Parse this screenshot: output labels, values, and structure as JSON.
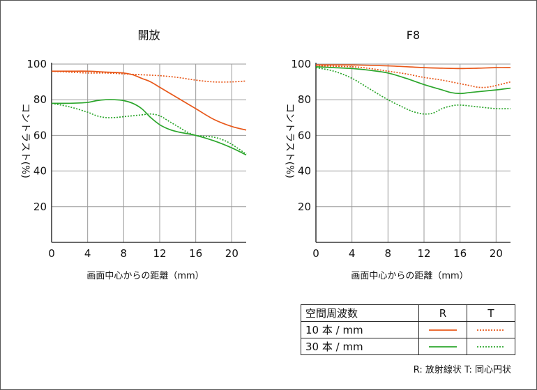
{
  "colors": {
    "r10": "#e8581a",
    "t10": "#e8581a",
    "r30": "#2ca62c",
    "t30": "#2ca62c",
    "grid": "#9a9a9a",
    "axis": "#111111"
  },
  "chart_data": [
    {
      "type": "line",
      "title": "開放",
      "xlabel": "画面中心からの距離（mm）",
      "ylabel": "コントラスト(%)",
      "xlim": [
        0,
        21.6
      ],
      "ylim": [
        0,
        100
      ],
      "xticks": [
        0,
        4,
        8,
        12,
        16,
        20
      ],
      "yticks": [
        20,
        40,
        60,
        80,
        100
      ],
      "grid": true,
      "series": [
        {
          "key": "r10",
          "style": "solid",
          "x": [
            0,
            2,
            4,
            6,
            8,
            9,
            10,
            11,
            12,
            13,
            14,
            16,
            18,
            20,
            21.6
          ],
          "y": [
            96,
            96,
            96,
            95.5,
            95,
            94,
            92,
            90,
            87,
            84,
            81,
            75,
            69,
            65,
            63
          ]
        },
        {
          "key": "t10",
          "style": "dotted",
          "x": [
            0,
            2,
            4,
            6,
            8,
            10,
            12,
            14,
            16,
            18,
            20,
            21.6
          ],
          "y": [
            96,
            95.5,
            95,
            95,
            94.5,
            94,
            93.5,
            92.5,
            91,
            90,
            90,
            90.5
          ]
        },
        {
          "key": "r30",
          "style": "solid",
          "x": [
            0,
            2,
            4,
            5,
            6,
            7,
            8,
            9,
            10,
            11,
            12,
            13,
            14,
            16,
            18,
            20,
            21.6
          ],
          "y": [
            78,
            78,
            78.5,
            79.5,
            80,
            80,
            79.5,
            78,
            75,
            70,
            66,
            63.5,
            62,
            60,
            57,
            53,
            49
          ]
        },
        {
          "key": "t30",
          "style": "dotted",
          "x": [
            0,
            2,
            4,
            5,
            6,
            7,
            8,
            10,
            11,
            12,
            13,
            14,
            15,
            16,
            17,
            18,
            19,
            20,
            21.6
          ],
          "y": [
            78,
            76,
            73,
            71,
            70,
            70,
            70.5,
            71.5,
            72,
            71,
            68,
            65,
            62,
            60,
            59.5,
            59,
            57.5,
            55,
            49.5
          ]
        }
      ]
    },
    {
      "type": "line",
      "title": "F8",
      "xlabel": "画面中心からの距離（mm）",
      "ylabel": "コントラスト(%)",
      "xlim": [
        0,
        21.6
      ],
      "ylim": [
        0,
        100
      ],
      "xticks": [
        0,
        4,
        8,
        12,
        16,
        20
      ],
      "yticks": [
        20,
        40,
        60,
        80,
        100
      ],
      "grid": true,
      "series": [
        {
          "key": "r10",
          "style": "solid",
          "x": [
            0,
            4,
            8,
            12,
            14,
            16,
            18,
            20,
            21.6
          ],
          "y": [
            99.5,
            99.5,
            99,
            98,
            97.7,
            97.5,
            97.7,
            98,
            98
          ]
        },
        {
          "key": "t10",
          "style": "dotted",
          "x": [
            0,
            4,
            6,
            8,
            10,
            12,
            14,
            16,
            17,
            18,
            19,
            20,
            21.6
          ],
          "y": [
            99,
            98.5,
            97.5,
            96,
            94.5,
            92.5,
            91,
            89,
            88,
            87,
            87,
            88,
            90
          ]
        },
        {
          "key": "r30",
          "style": "solid",
          "x": [
            0,
            2,
            4,
            6,
            8,
            10,
            12,
            14,
            15,
            16,
            17,
            18,
            20,
            21.6
          ],
          "y": [
            98.5,
            98,
            97.5,
            96.5,
            95,
            92,
            88.5,
            85.5,
            84,
            83.5,
            84,
            84.5,
            85.5,
            86.5
          ]
        },
        {
          "key": "t30",
          "style": "dotted",
          "x": [
            0,
            2,
            4,
            6,
            8,
            10,
            11,
            12,
            13,
            14,
            15,
            16,
            18,
            20,
            21.6
          ],
          "y": [
            98,
            96,
            92,
            86,
            80,
            75,
            73,
            72,
            72.5,
            75,
            76.5,
            77,
            76,
            75,
            75
          ]
        }
      ]
    }
  ],
  "legend": {
    "header": {
      "name": "空間周波数",
      "r": "R",
      "t": "T"
    },
    "rows": [
      {
        "label": "10 本 / mm",
        "r_key": "r10",
        "t_key": "t10"
      },
      {
        "label": "30 本 / mm",
        "r_key": "r30",
        "t_key": "t30"
      }
    ]
  },
  "footnote": "R: 放射線状  T: 同心円状"
}
